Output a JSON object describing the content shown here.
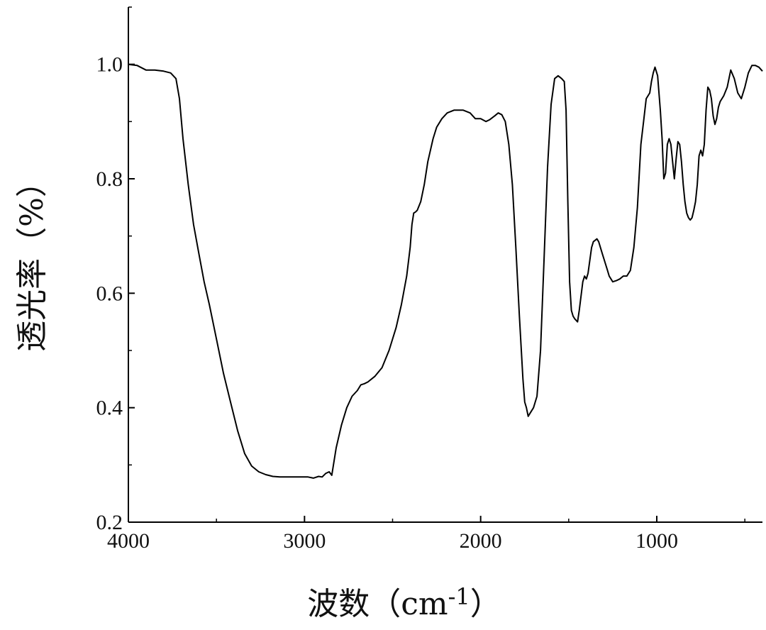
{
  "chart_data": {
    "type": "line",
    "title": "",
    "xlabel": "波数（cm",
    "xlabel_sup": "-1",
    "xlabel_close": "）",
    "ylabel": "透光率（%）",
    "xlim": [
      4000,
      400
    ],
    "ylim": [
      0.2,
      1.1
    ],
    "x_reversed": true,
    "grid": false,
    "x_ticks": [
      4000,
      3000,
      2000,
      1000
    ],
    "x_tick_labels": [
      "4000",
      "3000",
      "2000",
      "1000"
    ],
    "y_ticks": [
      0.2,
      0.4,
      0.6,
      0.8,
      1.0
    ],
    "y_tick_labels": [
      "0.2",
      "0.4",
      "0.6",
      "0.8",
      "1.0"
    ],
    "line_color": "#000000",
    "series": [
      {
        "x": [
          4000,
          3950,
          3900,
          3850,
          3800,
          3760,
          3730,
          3710,
          3690,
          3660,
          3630,
          3600,
          3570,
          3540,
          3500,
          3460,
          3420,
          3380,
          3340,
          3300,
          3260,
          3220,
          3180,
          3140,
          3100,
          3060,
          3020,
          2980,
          2950,
          2920,
          2900,
          2880,
          2860,
          2845,
          2820,
          2790,
          2760,
          2730,
          2700,
          2680,
          2660,
          2640,
          2600,
          2560,
          2520,
          2480,
          2450,
          2420,
          2400,
          2390,
          2380,
          2370,
          2360,
          2340,
          2320,
          2300,
          2270,
          2250,
          2220,
          2190,
          2150,
          2100,
          2060,
          2030,
          2000,
          1970,
          1950,
          1920,
          1900,
          1880,
          1860,
          1840,
          1820,
          1800,
          1780,
          1760,
          1750,
          1740,
          1730,
          1720,
          1700,
          1680,
          1660,
          1640,
          1620,
          1600,
          1580,
          1560,
          1540,
          1525,
          1515,
          1505,
          1495,
          1485,
          1475,
          1465,
          1450,
          1440,
          1420,
          1410,
          1400,
          1390,
          1370,
          1360,
          1340,
          1330,
          1310,
          1300,
          1290,
          1280,
          1270,
          1250,
          1230,
          1210,
          1190,
          1170,
          1150,
          1130,
          1110,
          1090,
          1075,
          1060,
          1040,
          1030,
          1020,
          1010,
          995,
          980,
          970,
          960,
          950,
          940,
          930,
          920,
          910,
          900,
          890,
          880,
          870,
          860,
          850,
          840,
          830,
          820,
          810,
          800,
          790,
          780,
          770,
          760,
          750,
          740,
          730,
          720,
          710,
          700,
          690,
          680,
          670,
          660,
          650,
          640,
          620,
          600,
          580,
          560,
          540,
          520,
          500,
          480,
          460,
          440,
          420,
          400
        ],
        "y": [
          1.0,
          0.998,
          0.99,
          0.99,
          0.988,
          0.985,
          0.975,
          0.94,
          0.87,
          0.79,
          0.72,
          0.67,
          0.62,
          0.58,
          0.52,
          0.46,
          0.41,
          0.36,
          0.32,
          0.298,
          0.288,
          0.283,
          0.28,
          0.279,
          0.279,
          0.279,
          0.279,
          0.279,
          0.277,
          0.28,
          0.279,
          0.285,
          0.288,
          0.282,
          0.33,
          0.37,
          0.4,
          0.42,
          0.43,
          0.44,
          0.442,
          0.445,
          0.455,
          0.47,
          0.5,
          0.54,
          0.58,
          0.63,
          0.68,
          0.72,
          0.74,
          0.742,
          0.745,
          0.76,
          0.79,
          0.83,
          0.87,
          0.89,
          0.905,
          0.915,
          0.92,
          0.92,
          0.915,
          0.905,
          0.905,
          0.9,
          0.903,
          0.91,
          0.915,
          0.912,
          0.9,
          0.86,
          0.79,
          0.68,
          0.56,
          0.45,
          0.41,
          0.4,
          0.385,
          0.39,
          0.4,
          0.42,
          0.5,
          0.66,
          0.82,
          0.93,
          0.975,
          0.98,
          0.975,
          0.97,
          0.92,
          0.76,
          0.62,
          0.57,
          0.56,
          0.555,
          0.55,
          0.57,
          0.62,
          0.63,
          0.625,
          0.635,
          0.68,
          0.69,
          0.695,
          0.69,
          0.67,
          0.66,
          0.65,
          0.64,
          0.63,
          0.62,
          0.622,
          0.625,
          0.63,
          0.63,
          0.64,
          0.68,
          0.75,
          0.86,
          0.9,
          0.94,
          0.95,
          0.97,
          0.985,
          0.995,
          0.98,
          0.92,
          0.87,
          0.8,
          0.81,
          0.86,
          0.87,
          0.86,
          0.83,
          0.8,
          0.835,
          0.865,
          0.86,
          0.83,
          0.79,
          0.76,
          0.74,
          0.732,
          0.728,
          0.732,
          0.745,
          0.76,
          0.79,
          0.84,
          0.85,
          0.84,
          0.86,
          0.92,
          0.96,
          0.955,
          0.94,
          0.91,
          0.895,
          0.905,
          0.925,
          0.935,
          0.945,
          0.96,
          0.99,
          0.975,
          0.95,
          0.94,
          0.96,
          0.985,
          0.998,
          0.998,
          0.995,
          0.988
        ]
      }
    ]
  }
}
